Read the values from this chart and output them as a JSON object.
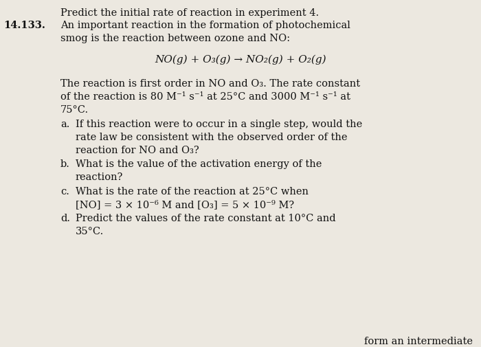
{
  "bg_color": "#ece8e0",
  "text_color": "#111111",
  "title_line": "Predict the initial rate of reaction in experiment 4.",
  "problem_number": "14.133.",
  "intro_line1": "An important reaction in the formation of photochemical",
  "intro_line2": "smog is the reaction between ozone and NO:",
  "equation": "NO(g) + O₃(g) → NO₂(g) + O₂(g)",
  "para_line1": "The reaction is first order in NO and O₃. The rate constant",
  "para_line2": "of the reaction is 80 M⁻¹ s⁻¹ at 25°C and 3000 M⁻¹ s⁻¹ at",
  "para_line3": "75°C.",
  "a_label": "a.",
  "a_line1": "If this reaction were to occur in a single step, would the",
  "a_line2": "rate law be consistent with the observed order of the",
  "a_line3": "reaction for NO and O₃?",
  "b_label": "b.",
  "b_line1": "What is the value of the activation energy of the",
  "b_line2": "reaction?",
  "c_label": "c.",
  "c_line1": "What is the rate of the reaction at 25°C when",
  "c_line2": "[NO] = 3 × 10⁻⁶ M and [O₃] = 5 × 10⁻⁹ M?",
  "d_label": "d.",
  "d_line1": "Predict the values of the rate constant at 10°C and",
  "d_line2": "35°C.",
  "bottom_text": "form an intermediate",
  "fs": 10.5,
  "fs_eq": 11.0
}
